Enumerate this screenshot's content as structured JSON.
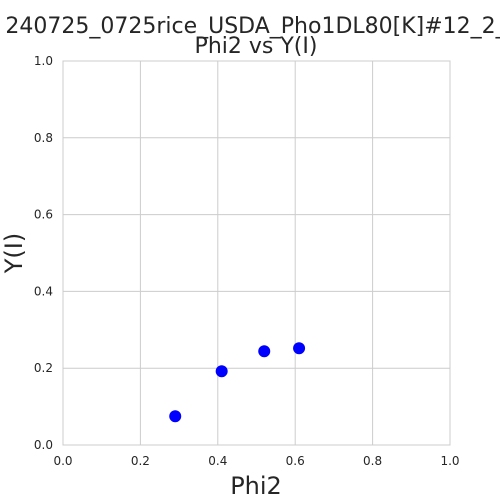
{
  "chart_data": {
    "type": "scatter",
    "title": "240725_0725rice_USDA_Pho1DL80[K]#12_2_",
    "subtitle": "Phi2 vs Y(I)",
    "xlabel": "Phi2",
    "ylabel": "Y(I)",
    "xlim": [
      0.0,
      1.0
    ],
    "ylim": [
      0.0,
      1.0
    ],
    "xticks": [
      "0.0",
      "0.2",
      "0.4",
      "0.6",
      "0.8",
      "1.0"
    ],
    "yticks": [
      "0.0",
      "0.2",
      "0.4",
      "0.6",
      "0.8",
      "1.0"
    ],
    "grid": true,
    "marker_color": "#0000ff",
    "points": [
      {
        "x": 0.29,
        "y": 0.075
      },
      {
        "x": 0.41,
        "y": 0.192
      },
      {
        "x": 0.52,
        "y": 0.244
      },
      {
        "x": 0.61,
        "y": 0.252
      }
    ]
  }
}
